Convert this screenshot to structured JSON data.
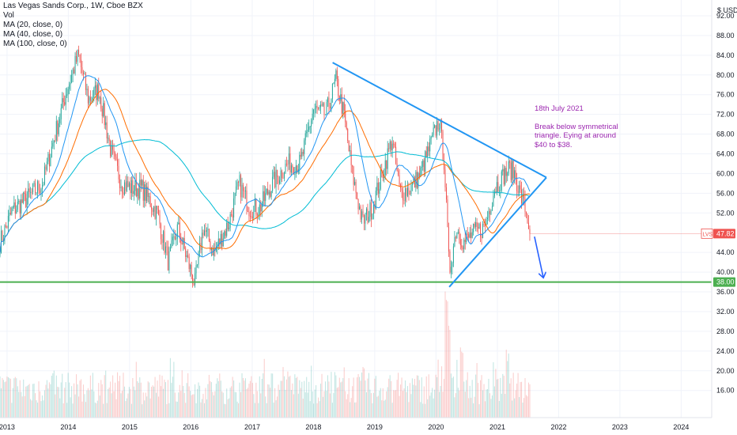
{
  "legend": {
    "symbol": "Las Vegas Sands Corp., 1W, Cboe BZX",
    "volume": "Vol",
    "ma20": "MA (20, close, 0)",
    "ma40": "MA (40, close, 0)",
    "ma100": "MA (100, close, 0)"
  },
  "currency": "$ USD",
  "annotation": {
    "date": "18th July 2021",
    "text": "Break below symmetrical triangle. Eying at around $40 to $38."
  },
  "colors": {
    "up": "#26a69a",
    "down": "#ef5350",
    "ma20": "#2196f3",
    "ma40": "#ff6d00",
    "ma100": "#00bcd4",
    "triangle": "#2196f3",
    "support": "#4caf50",
    "arrow": "#2962ff",
    "note": "#9c27b0"
  },
  "chart_data": {
    "type": "candlestick",
    "title": "Las Vegas Sands Corp., 1W, Cboe BZX",
    "x_axis": {
      "type": "date",
      "range": [
        "2012-11-20",
        "2024-07-01"
      ],
      "ticks": [
        "2013",
        "2014",
        "2015",
        "2016",
        "2017",
        "2018",
        "2019",
        "2020",
        "2021",
        "2022",
        "2023",
        "2024"
      ]
    },
    "y_axis": {
      "unit": "$ USD",
      "range": [
        10.5,
        95.2
      ],
      "ticks": [
        "92.00",
        "88.00",
        "84.00",
        "80.00",
        "76.00",
        "72.00",
        "68.00",
        "64.00",
        "60.00",
        "56.00",
        "52.00",
        "44.00",
        "40.00",
        "36.00",
        "32.00",
        "28.00",
        "24.00",
        "20.00",
        "16.00"
      ]
    },
    "last_price": {
      "label": "LVS",
      "value": "47.82"
    },
    "support_level": {
      "value": "38.00"
    },
    "price_path": [
      [
        "2012-11-20",
        46.0
      ],
      [
        "2013-02-01",
        52.5
      ],
      [
        "2013-05-01",
        55.0
      ],
      [
        "2013-08-01",
        58.0
      ],
      [
        "2013-10-15",
        68.0
      ],
      [
        "2013-12-15",
        76.0
      ],
      [
        "2014-03-01",
        84.0
      ],
      [
        "2014-05-01",
        75.0
      ],
      [
        "2014-07-01",
        77.0
      ],
      [
        "2014-09-15",
        64.0
      ],
      [
        "2014-11-15",
        58.0
      ],
      [
        "2015-01-15",
        57.0
      ],
      [
        "2015-03-15",
        57.0
      ],
      [
        "2015-06-15",
        52.0
      ],
      [
        "2015-08-20",
        42.0
      ],
      [
        "2015-10-15",
        49.0
      ],
      [
        "2016-01-25",
        37.5
      ],
      [
        "2016-03-15",
        49.0
      ],
      [
        "2016-05-20",
        44.0
      ],
      [
        "2016-08-15",
        50.0
      ],
      [
        "2016-10-15",
        58.0
      ],
      [
        "2016-12-15",
        53.0
      ],
      [
        "2017-02-15",
        53.0
      ],
      [
        "2017-05-01",
        58.0
      ],
      [
        "2017-08-01",
        62.0
      ],
      [
        "2017-10-15",
        62.0
      ],
      [
        "2018-01-01",
        73.0
      ],
      [
        "2018-03-15",
        72.0
      ],
      [
        "2018-05-15",
        79.0
      ],
      [
        "2018-07-01",
        72.0
      ],
      [
        "2018-08-20",
        60.0
      ],
      [
        "2018-10-20",
        50.0
      ],
      [
        "2018-12-15",
        53.0
      ],
      [
        "2019-02-15",
        60.0
      ],
      [
        "2019-04-15",
        67.0
      ],
      [
        "2019-06-01",
        56.0
      ],
      [
        "2019-08-01",
        57.0
      ],
      [
        "2019-10-01",
        60.0
      ],
      [
        "2019-12-01",
        66.0
      ],
      [
        "2020-01-20",
        71.0
      ],
      [
        "2020-02-20",
        62.0
      ],
      [
        "2020-03-20",
        40.0
      ],
      [
        "2020-05-01",
        49.0
      ],
      [
        "2020-06-15",
        46.0
      ],
      [
        "2020-08-15",
        48.0
      ],
      [
        "2020-10-15",
        49.0
      ],
      [
        "2020-12-15",
        57.0
      ],
      [
        "2021-02-15",
        60.0
      ],
      [
        "2021-03-15",
        61.0
      ],
      [
        "2021-04-15",
        60.0
      ],
      [
        "2021-05-15",
        56.0
      ],
      [
        "2021-06-15",
        53.0
      ],
      [
        "2021-07-19",
        47.8
      ]
    ],
    "volume_peaks": [
      [
        "2020-03-01",
        36.5
      ],
      [
        "2020-03-20",
        31.0
      ],
      [
        "2020-06-01",
        26.0
      ],
      [
        "2021-03-01",
        24.5
      ],
      [
        "2018-10-20",
        22.0
      ]
    ],
    "drawings": [
      {
        "type": "trendline",
        "name": "upper",
        "from": [
          "2018-04-25",
          82.5
        ],
        "to": [
          "2021-10-20",
          59.2
        ]
      },
      {
        "type": "trendline",
        "name": "lower",
        "from": [
          "2020-03-20",
          37.0
        ],
        "to": [
          "2021-10-20",
          59.2
        ]
      },
      {
        "type": "arrow",
        "from": [
          "2021-08-10",
          47.2
        ],
        "to": [
          "2021-10-01",
          39.0
        ]
      }
    ]
  }
}
